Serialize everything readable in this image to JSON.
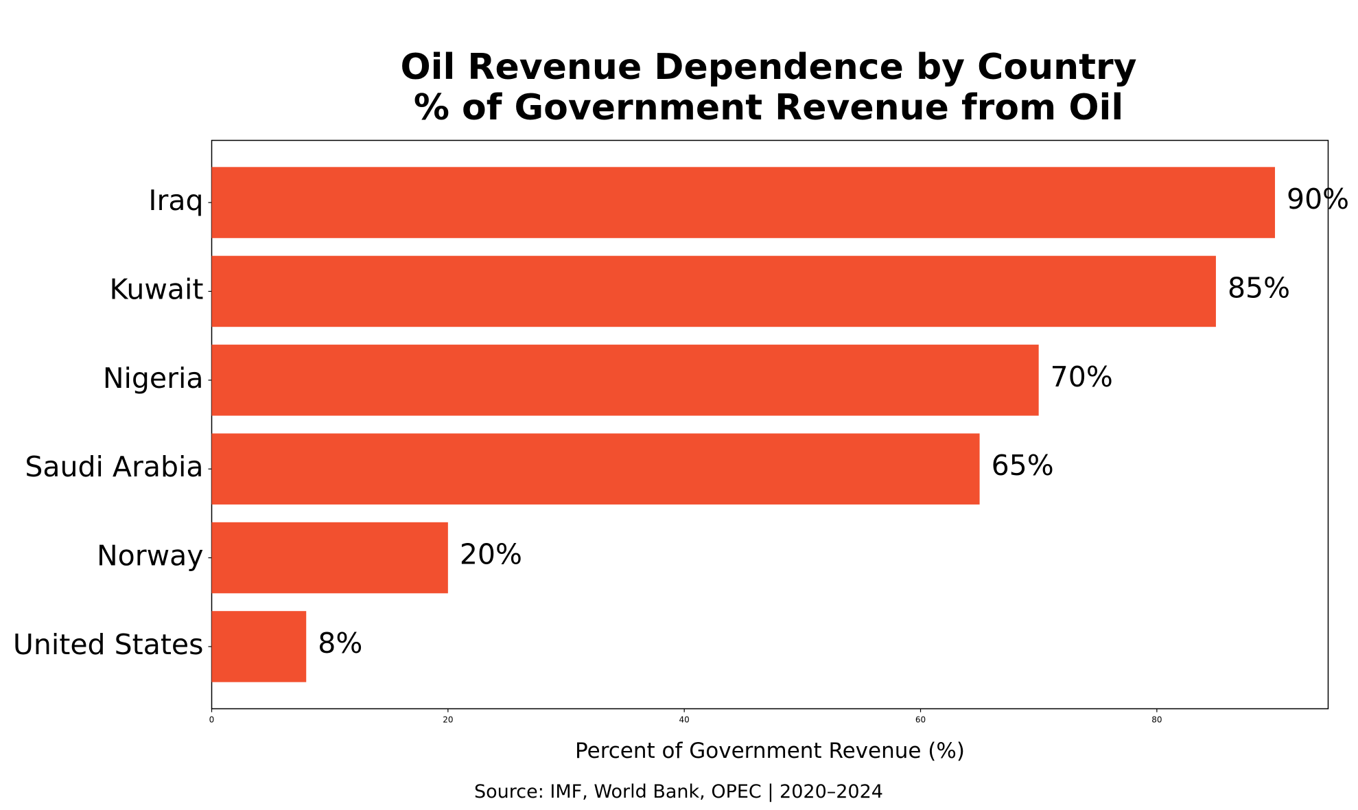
{
  "chart_data": {
    "type": "bar",
    "orientation": "horizontal",
    "title_lines": [
      "Oil Revenue Dependence by Country",
      "% of Government Revenue from Oil"
    ],
    "categories": [
      "Iraq",
      "Kuwait",
      "Nigeria",
      "Saudi Arabia",
      "Norway",
      "United States"
    ],
    "values": [
      90,
      85,
      70,
      65,
      20,
      8
    ],
    "value_labels": [
      "90%",
      "85%",
      "70%",
      "65%",
      "20%",
      "8%"
    ],
    "xlabel": "Percent of Government Revenue (%)",
    "ylabel": "",
    "xlim": [
      0,
      94.5
    ],
    "xticks": [
      0,
      20,
      40,
      60,
      80
    ],
    "xtick_labels": [
      "0",
      "20",
      "40",
      "60",
      "80"
    ],
    "grid": false,
    "bar_color": "#f2502f",
    "source": "Source: IMF, World Bank, OPEC | 2020–2024"
  }
}
